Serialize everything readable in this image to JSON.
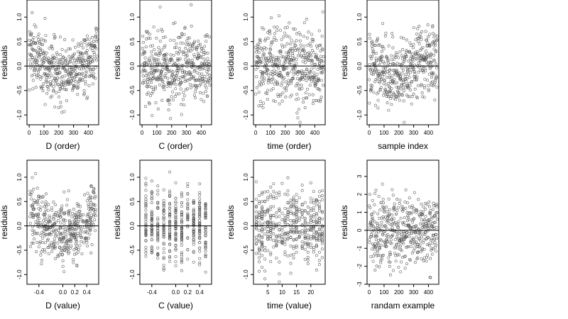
{
  "figure": {
    "background": "#ffffff",
    "point_color": "#555555",
    "line_color": "#000000"
  },
  "chart_data": [
    {
      "type": "scatter",
      "id": "d-order",
      "xlabel": "D (order)",
      "ylabel": "residuals",
      "xlim": [
        -15,
        470
      ],
      "ylim": [
        -1.2,
        1.35
      ],
      "xticks": [
        0,
        100,
        200,
        300,
        400
      ],
      "xtick_labels": [
        "0",
        "100",
        "200",
        "300",
        "400"
      ],
      "yticks": [
        -1.0,
        -0.5,
        0.0,
        0.5,
        1.0
      ],
      "ytick_labels": [
        "-1.0",
        "-0.5",
        "0.0",
        "0.5",
        "1.0"
      ],
      "hline": 0,
      "n_points": 460,
      "x_mode": "index",
      "pattern": "u-shape"
    },
    {
      "type": "scatter",
      "id": "c-order",
      "xlabel": "C (order)",
      "ylabel": "residuals",
      "xlim": [
        -15,
        470
      ],
      "ylim": [
        -1.2,
        1.35
      ],
      "xticks": [
        0,
        100,
        200,
        300,
        400
      ],
      "xtick_labels": [
        "0",
        "100",
        "200",
        "300",
        "400"
      ],
      "yticks": [
        -1.0,
        -0.5,
        0.0,
        0.5,
        1.0
      ],
      "ytick_labels": [
        "-1.0",
        "-0.5",
        "0.0",
        "0.5",
        "1.0"
      ],
      "hline": 0,
      "n_points": 460,
      "x_mode": "index",
      "pattern": "random"
    },
    {
      "type": "scatter",
      "id": "time-order",
      "xlabel": "time (order)",
      "ylabel": "residuals",
      "xlim": [
        -15,
        470
      ],
      "ylim": [
        -1.2,
        1.35
      ],
      "xticks": [
        0,
        100,
        200,
        300,
        400
      ],
      "xtick_labels": [
        "0",
        "100",
        "200",
        "300",
        "400"
      ],
      "yticks": [
        -1.0,
        -0.5,
        0.0,
        0.5,
        1.0
      ],
      "ytick_labels": [
        "-1.0",
        "-0.5",
        "0.0",
        "0.5",
        "1.0"
      ],
      "hline": 0,
      "n_points": 460,
      "x_mode": "index",
      "pattern": "random"
    },
    {
      "type": "scatter",
      "id": "sample-index",
      "xlabel": "sample index",
      "ylabel": "residuals",
      "xlim": [
        -15,
        470
      ],
      "ylim": [
        -1.2,
        1.35
      ],
      "xticks": [
        0,
        100,
        200,
        300,
        400
      ],
      "xtick_labels": [
        "0",
        "100",
        "200",
        "300",
        "400"
      ],
      "yticks": [
        -1.0,
        -0.5,
        0.0,
        0.5,
        1.0
      ],
      "ytick_labels": [
        "-1.0",
        "-0.5",
        "0.0",
        "0.5",
        "1.0"
      ],
      "hline": 0,
      "n_points": 460,
      "x_mode": "index",
      "pattern": "wave"
    },
    {
      "type": "scatter",
      "id": "d-value",
      "xlabel": "D (value)",
      "ylabel": "residuals",
      "xlim": [
        -0.6,
        0.6
      ],
      "ylim": [
        -1.2,
        1.35
      ],
      "xticks": [
        -0.4,
        0.0,
        0.2,
        0.4
      ],
      "xtick_labels": [
        "-0.4",
        "0.0",
        "0.2",
        "0.4"
      ],
      "yticks": [
        -1.0,
        -0.5,
        0.0,
        0.5,
        1.0
      ],
      "ytick_labels": [
        "-1.0",
        "-0.5",
        "0.0",
        "0.5",
        "1.0"
      ],
      "hline": 0,
      "n_points": 460,
      "x_mode": "value",
      "x_range": [
        -0.55,
        0.55
      ],
      "pattern": "u-shape-value"
    },
    {
      "type": "scatter",
      "id": "c-value",
      "xlabel": "C (value)",
      "ylabel": "residuals",
      "xlim": [
        -0.6,
        0.6
      ],
      "ylim": [
        -1.2,
        1.35
      ],
      "xticks": [
        -0.4,
        0.0,
        0.2,
        0.4
      ],
      "xtick_labels": [
        "-0.4",
        "0.0",
        "0.2",
        "0.4"
      ],
      "yticks": [
        -1.0,
        -0.5,
        0.0,
        0.5,
        1.0
      ],
      "ytick_labels": [
        "-1.0",
        "-0.5",
        "0.0",
        "0.5",
        "1.0"
      ],
      "hline": 0,
      "n_points": 460,
      "x_mode": "discrete",
      "x_levels": [
        -0.5,
        -0.4,
        -0.3,
        -0.2,
        -0.1,
        0.0,
        0.1,
        0.2,
        0.3,
        0.4,
        0.5
      ],
      "pattern": "random"
    },
    {
      "type": "scatter",
      "id": "time-value",
      "xlabel": "time (value)",
      "ylabel": "residuals",
      "xlim": [
        0,
        25
      ],
      "ylim": [
        -1.2,
        1.35
      ],
      "xticks": [
        5,
        10,
        15,
        20
      ],
      "xtick_labels": [
        "5",
        "10",
        "15",
        "20"
      ],
      "yticks": [
        -1.0,
        -0.5,
        0.0,
        0.5,
        1.0
      ],
      "ytick_labels": [
        "-1.0",
        "-0.5",
        "0.0",
        "0.5",
        "1.0"
      ],
      "hline": 0,
      "n_points": 460,
      "x_mode": "discrete",
      "x_levels": [
        1,
        2,
        3,
        4,
        5,
        6,
        7,
        8,
        9,
        10,
        11,
        12,
        13,
        14,
        15,
        16,
        17,
        18,
        19,
        20,
        21,
        22,
        23,
        24
      ],
      "pattern": "random"
    },
    {
      "type": "scatter",
      "id": "randam-example",
      "xlabel": "randam example",
      "ylabel": "residuals",
      "xlim": [
        -15,
        470
      ],
      "ylim": [
        -3.0,
        3.9
      ],
      "xticks": [
        0,
        100,
        200,
        300,
        400
      ],
      "xtick_labels": [
        "0",
        "100",
        "200",
        "300",
        "400"
      ],
      "yticks": [
        -3,
        -2,
        -1,
        0,
        1,
        2,
        3
      ],
      "ytick_labels": [
        "-3",
        "-2",
        "-1",
        "0",
        "1",
        "2",
        "3"
      ],
      "hline": 0,
      "n_points": 460,
      "x_mode": "index",
      "pattern": "normal"
    }
  ]
}
